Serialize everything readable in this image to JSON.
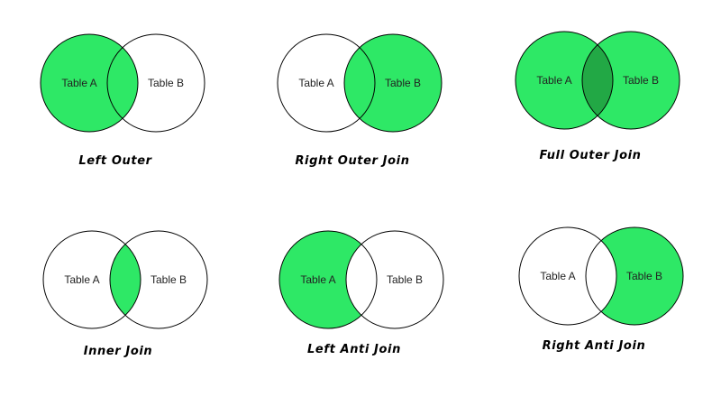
{
  "colors": {
    "fill": "#2ee866",
    "overlap": "#22a845",
    "empty": "#ffffff",
    "stroke": "#000000"
  },
  "diagrams": [
    {
      "caption": "Left Outer",
      "label_a": "Table A",
      "label_b": "Table B",
      "shaded": "a"
    },
    {
      "caption": "Right Outer Join",
      "label_a": "Table A",
      "label_b": "Table B",
      "shaded": "b"
    },
    {
      "caption": "Full Outer Join",
      "label_a": "Table A",
      "label_b": "Table B",
      "shaded": "full"
    },
    {
      "caption": "Inner Join",
      "label_a": "Table A",
      "label_b": "Table B",
      "shaded": "intersection"
    },
    {
      "caption": "Left Anti Join",
      "label_a": "Table A",
      "label_b": "Table B",
      "shaded": "a-only"
    },
    {
      "caption": "Right Anti Join",
      "label_a": "Table A",
      "label_b": "Table B",
      "shaded": "b-only"
    }
  ]
}
